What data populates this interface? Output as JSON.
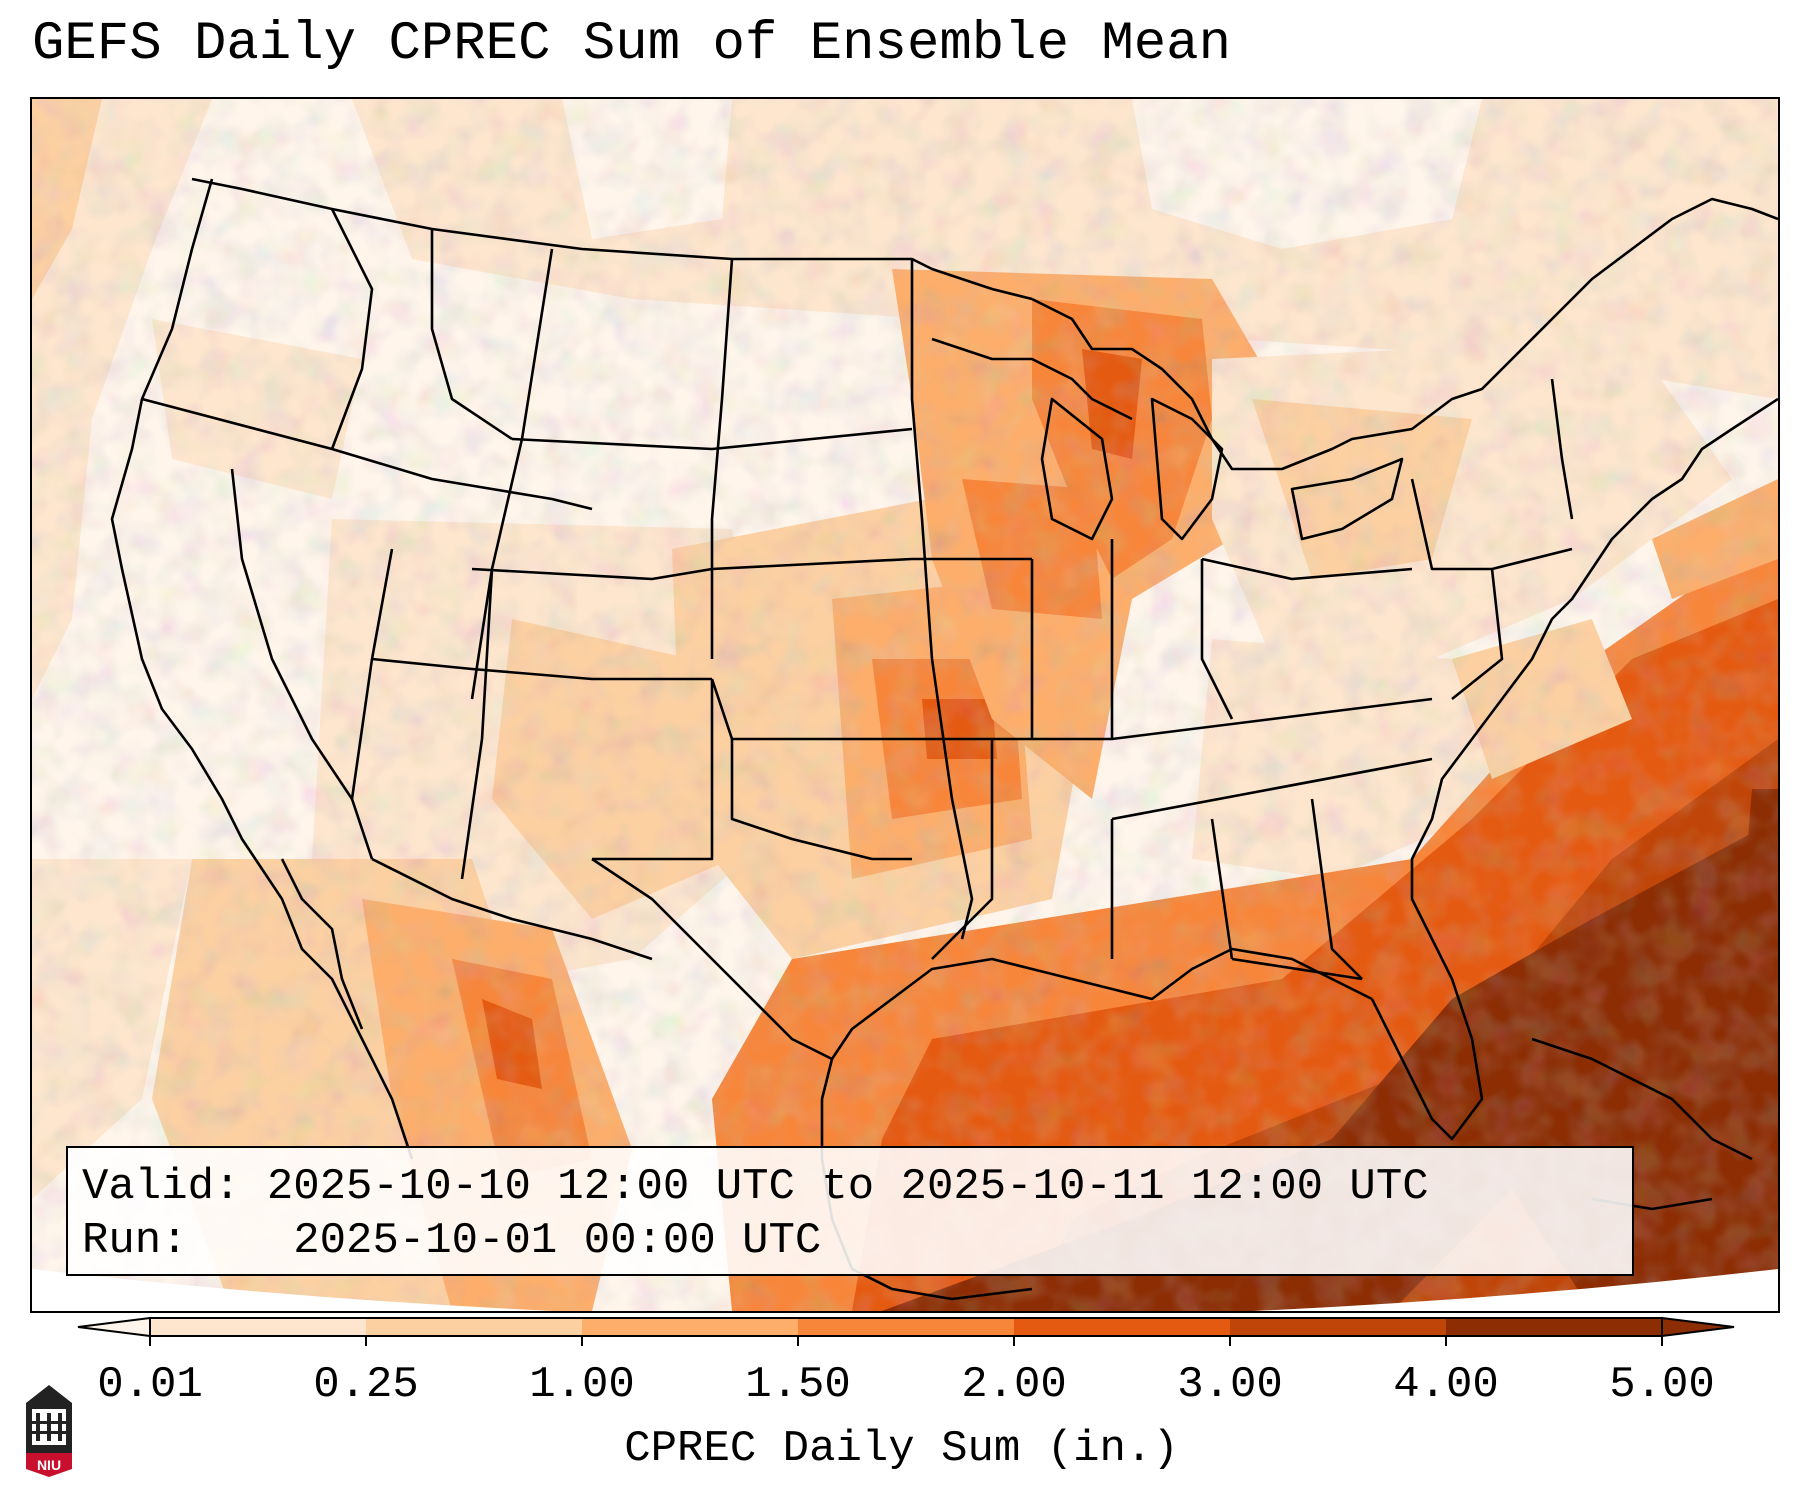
{
  "title": "GEFS Daily CPREC Sum of Ensemble Mean",
  "info": {
    "valid_label": "Valid:",
    "valid_value": "2025-10-10 12:00 UTC to 2025-10-11 12:00 UTC",
    "run_label": "Run:",
    "run_value": "2025-10-01 00:00 UTC"
  },
  "colorbar": {
    "label": "CPREC Daily Sum (in.)",
    "ticks": [
      "0.01",
      "0.25",
      "1.00",
      "1.50",
      "2.00",
      "3.00",
      "4.00",
      "5.00"
    ],
    "colors": [
      "#fff5eb",
      "#fee6ce",
      "#fdd0a2",
      "#fdae6b",
      "#f7863b",
      "#e55a11",
      "#c04508",
      "#8c2d04"
    ],
    "extend": "both"
  },
  "logo": {
    "text": "NIU",
    "color": "#c8102e"
  },
  "map": {
    "projection": "lambert-conformal",
    "region": "CONUS",
    "palette": "Oranges"
  }
}
